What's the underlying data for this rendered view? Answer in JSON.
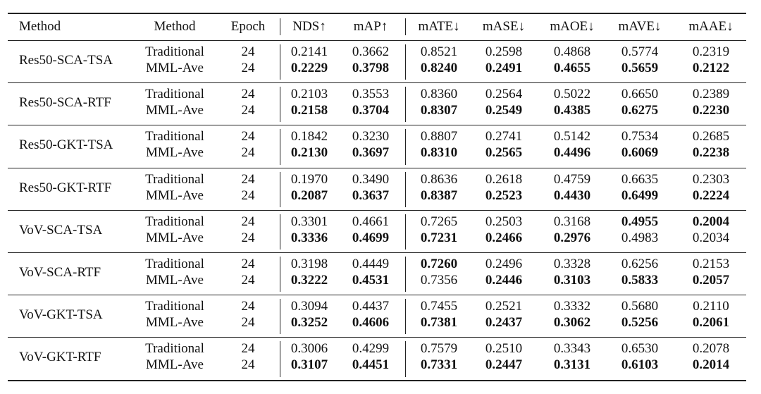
{
  "header": [
    "Method",
    "Method",
    "Epoch",
    "NDS↑",
    "mAP↑",
    "mATE↓",
    "mASE↓",
    "mAOE↓",
    "mAVE↓",
    "mAAE↓"
  ],
  "groups": [
    {
      "name": "Res50-SCA-TSA",
      "rows": [
        {
          "method": "Traditional",
          "epoch": "24",
          "values": [
            "0.2141",
            "0.3662",
            "0.8521",
            "0.2598",
            "0.4868",
            "0.5774",
            "0.2319"
          ],
          "bold": [
            false,
            false,
            false,
            false,
            false,
            false,
            false
          ]
        },
        {
          "method": "MML-Ave",
          "epoch": "24",
          "values": [
            "0.2229",
            "0.3798",
            "0.8240",
            "0.2491",
            "0.4655",
            "0.5659",
            "0.2122"
          ],
          "bold": [
            true,
            true,
            true,
            true,
            true,
            true,
            true
          ]
        }
      ]
    },
    {
      "name": "Res50-SCA-RTF",
      "rows": [
        {
          "method": "Traditional",
          "epoch": "24",
          "values": [
            "0.2103",
            "0.3553",
            "0.8360",
            "0.2564",
            "0.5022",
            "0.6650",
            "0.2389"
          ],
          "bold": [
            false,
            false,
            false,
            false,
            false,
            false,
            false
          ]
        },
        {
          "method": "MML-Ave",
          "epoch": "24",
          "values": [
            "0.2158",
            "0.3704",
            "0.8307",
            "0.2549",
            "0.4385",
            "0.6275",
            "0.2230"
          ],
          "bold": [
            true,
            true,
            true,
            true,
            true,
            true,
            true
          ]
        }
      ]
    },
    {
      "name": "Res50-GKT-TSA",
      "rows": [
        {
          "method": "Traditional",
          "epoch": "24",
          "values": [
            "0.1842",
            "0.3230",
            "0.8807",
            "0.2741",
            "0.5142",
            "0.7534",
            "0.2685"
          ],
          "bold": [
            false,
            false,
            false,
            false,
            false,
            false,
            false
          ]
        },
        {
          "method": "MML-Ave",
          "epoch": "24",
          "values": [
            "0.2130",
            "0.3697",
            "0.8310",
            "0.2565",
            "0.4496",
            "0.6069",
            "0.2238"
          ],
          "bold": [
            true,
            true,
            true,
            true,
            true,
            true,
            true
          ]
        }
      ]
    },
    {
      "name": "Res50-GKT-RTF",
      "rows": [
        {
          "method": "Traditional",
          "epoch": "24",
          "values": [
            "0.1970",
            "0.3490",
            "0.8636",
            "0.2618",
            "0.4759",
            "0.6635",
            "0.2303"
          ],
          "bold": [
            false,
            false,
            false,
            false,
            false,
            false,
            false
          ]
        },
        {
          "method": "MML-Ave",
          "epoch": "24",
          "values": [
            "0.2087",
            "0.3637",
            "0.8387",
            "0.2523",
            "0.4430",
            "0.6499",
            "0.2224"
          ],
          "bold": [
            true,
            true,
            true,
            true,
            true,
            true,
            true
          ]
        }
      ]
    },
    {
      "name": "VoV-SCA-TSA",
      "rows": [
        {
          "method": "Traditional",
          "epoch": "24",
          "values": [
            "0.3301",
            "0.4661",
            "0.7265",
            "0.2503",
            "0.3168",
            "0.4955",
            "0.2004"
          ],
          "bold": [
            false,
            false,
            false,
            false,
            false,
            true,
            true
          ]
        },
        {
          "method": "MML-Ave",
          "epoch": "24",
          "values": [
            "0.3336",
            "0.4699",
            "0.7231",
            "0.2466",
            "0.2976",
            "0.4983",
            "0.2034"
          ],
          "bold": [
            true,
            true,
            true,
            true,
            true,
            false,
            false
          ]
        }
      ]
    },
    {
      "name": "VoV-SCA-RTF",
      "rows": [
        {
          "method": "Traditional",
          "epoch": "24",
          "values": [
            "0.3198",
            "0.4449",
            "0.7260",
            "0.2496",
            "0.3328",
            "0.6256",
            "0.2153"
          ],
          "bold": [
            false,
            false,
            true,
            false,
            false,
            false,
            false
          ]
        },
        {
          "method": "MML-Ave",
          "epoch": "24",
          "values": [
            "0.3222",
            "0.4531",
            "0.7356",
            "0.2446",
            "0.3103",
            "0.5833",
            "0.2057"
          ],
          "bold": [
            true,
            true,
            false,
            true,
            true,
            true,
            true
          ]
        }
      ]
    },
    {
      "name": "VoV-GKT-TSA",
      "rows": [
        {
          "method": "Traditional",
          "epoch": "24",
          "values": [
            "0.3094",
            "0.4437",
            "0.7455",
            "0.2521",
            "0.3332",
            "0.5680",
            "0.2110"
          ],
          "bold": [
            false,
            false,
            false,
            false,
            false,
            false,
            false
          ]
        },
        {
          "method": "MML-Ave",
          "epoch": "24",
          "values": [
            "0.3252",
            "0.4606",
            "0.7381",
            "0.2437",
            "0.3062",
            "0.5256",
            "0.2061"
          ],
          "bold": [
            true,
            true,
            true,
            true,
            true,
            true,
            true
          ]
        }
      ]
    },
    {
      "name": "VoV-GKT-RTF",
      "rows": [
        {
          "method": "Traditional",
          "epoch": "24",
          "values": [
            "0.3006",
            "0.4299",
            "0.7579",
            "0.2510",
            "0.3343",
            "0.6530",
            "0.2078"
          ],
          "bold": [
            false,
            false,
            false,
            false,
            false,
            false,
            false
          ]
        },
        {
          "method": "MML-Ave",
          "epoch": "24",
          "values": [
            "0.3107",
            "0.4451",
            "0.7331",
            "0.2447",
            "0.3131",
            "0.6103",
            "0.2014"
          ],
          "bold": [
            true,
            true,
            true,
            true,
            true,
            true,
            true
          ]
        }
      ]
    }
  ]
}
